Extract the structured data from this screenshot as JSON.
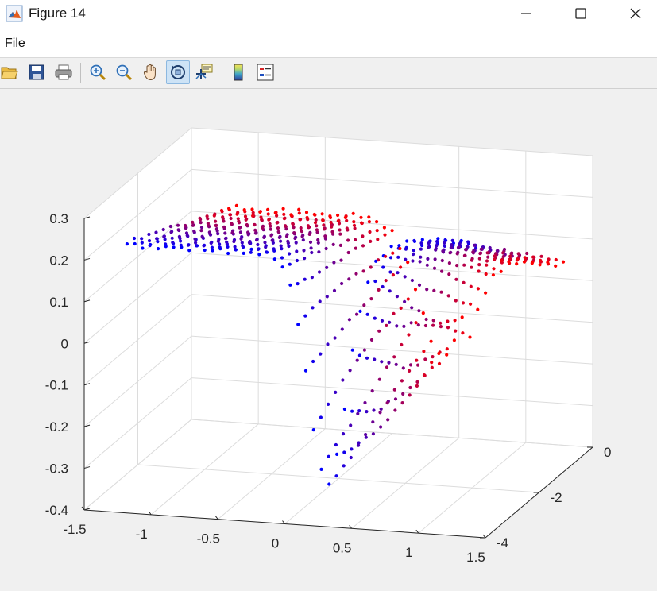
{
  "window": {
    "title": "Figure 14"
  },
  "menu": {
    "items": [
      "File"
    ]
  },
  "toolbar": {
    "buttons": [
      {
        "name": "open-file-icon"
      },
      {
        "name": "save-icon"
      },
      {
        "name": "print-icon"
      },
      {
        "name": "zoom-in-icon"
      },
      {
        "name": "zoom-out-icon"
      },
      {
        "name": "pan-icon"
      },
      {
        "name": "rotate-3d-icon",
        "active": true
      },
      {
        "name": "data-cursor-icon"
      },
      {
        "name": "colorbar-icon"
      },
      {
        "name": "legend-icon"
      }
    ]
  },
  "chart_data": {
    "type": "scatter",
    "projection": "3d",
    "title": "",
    "xlabel": "",
    "ylabel": "",
    "zlabel": "",
    "xlim": [
      -1.5,
      1.5
    ],
    "ylim": [
      -4,
      0
    ],
    "zlim": [
      -0.4,
      0.3
    ],
    "xticks": [
      "-1.5",
      "-1",
      "-0.5",
      "0",
      "0.5",
      "1",
      "1.5"
    ],
    "yticks": [
      "-4",
      "-2",
      "0"
    ],
    "zticks": [
      "-0.4",
      "-0.3",
      "-0.2",
      "-0.1",
      "0",
      "0.1",
      "0.2",
      "0.3"
    ],
    "grid": true,
    "colormap": [
      "#0000ff",
      "#ff0000"
    ],
    "series": [
      {
        "rows": 15,
        "cols": 44,
        "x_range": [
          -1.2,
          1.3
        ],
        "y_range": [
          -3.9,
          -0.1
        ],
        "color_from": "y",
        "surface": "z = 0.24 - 0.12*t(y) + valley(x) ; valley centre near x = 0.3, depth to about -0.32 at the front row, rising to about 0.05 and 0.1 on the right plateau"
      }
    ]
  }
}
